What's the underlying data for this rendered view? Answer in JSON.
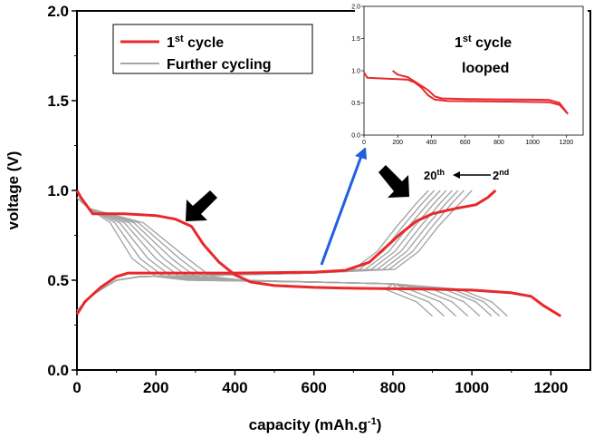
{
  "chart_data": {
    "type": "line",
    "xlabel": "capacity (mAh.g",
    "xlabel_sup": "-1",
    "xlabel_end": ")",
    "ylabel": "voltage (V)",
    "xlim": [
      0,
      1300
    ],
    "ylim": [
      0.0,
      2.0
    ],
    "x_ticks": [
      "0",
      "200",
      "400",
      "600",
      "800",
      "1000",
      "1200"
    ],
    "y_ticks": [
      "0.0",
      "0.5",
      "1.0",
      "1.5",
      "2.0"
    ],
    "grid": false,
    "legend_position": "top-left",
    "legend": [
      {
        "label": "1",
        "sup": "st",
        "label_end": " cycle",
        "color": "#e8282a"
      },
      {
        "label": "Further cycling",
        "sup": "",
        "label_end": "",
        "color": "#a6a6a6"
      }
    ],
    "series": [
      {
        "name": "1st cycle discharge",
        "color": "#e8282a",
        "points": [
          [
            0,
            1.0
          ],
          [
            10,
            0.96
          ],
          [
            40,
            0.87
          ],
          [
            120,
            0.87
          ],
          [
            200,
            0.86
          ],
          [
            250,
            0.84
          ],
          [
            290,
            0.8
          ],
          [
            320,
            0.7
          ],
          [
            360,
            0.6
          ],
          [
            400,
            0.53
          ],
          [
            440,
            0.49
          ],
          [
            500,
            0.47
          ],
          [
            600,
            0.46
          ],
          [
            700,
            0.455
          ],
          [
            900,
            0.45
          ],
          [
            1000,
            0.445
          ],
          [
            1100,
            0.43
          ],
          [
            1150,
            0.41
          ],
          [
            1180,
            0.36
          ],
          [
            1225,
            0.3
          ]
        ]
      },
      {
        "name": "1st cycle charge",
        "color": "#e8282a",
        "points": [
          [
            0,
            0.31
          ],
          [
            20,
            0.38
          ],
          [
            60,
            0.46
          ],
          [
            100,
            0.52
          ],
          [
            130,
            0.54
          ],
          [
            200,
            0.54
          ],
          [
            400,
            0.54
          ],
          [
            600,
            0.545
          ],
          [
            680,
            0.555
          ],
          [
            740,
            0.6
          ],
          [
            780,
            0.68
          ],
          [
            820,
            0.76
          ],
          [
            860,
            0.83
          ],
          [
            900,
            0.87
          ],
          [
            960,
            0.9
          ],
          [
            1010,
            0.92
          ],
          [
            1040,
            0.96
          ],
          [
            1060,
            1.0
          ]
        ]
      },
      {
        "name": "Further cycling discharge",
        "color": "#a6a6a6",
        "curves": [
          {
            "knee": 140,
            "end": 900
          },
          {
            "knee": 160,
            "end": 930
          },
          {
            "knee": 180,
            "end": 960
          },
          {
            "knee": 200,
            "end": 990
          },
          {
            "knee": 220,
            "end": 1020
          },
          {
            "knee": 240,
            "end": 1050
          },
          {
            "knee": 260,
            "end": 1070
          },
          {
            "knee": 280,
            "end": 1090
          }
        ]
      },
      {
        "name": "Further cycling charge",
        "color": "#a6a6a6",
        "curves": [
          {
            "rise": 700,
            "end": 890
          },
          {
            "rise": 715,
            "end": 905
          },
          {
            "rise": 730,
            "end": 920
          },
          {
            "rise": 745,
            "end": 935
          },
          {
            "rise": 760,
            "end": 950
          },
          {
            "rise": 775,
            "end": 965
          },
          {
            "rise": 790,
            "end": 980
          },
          {
            "rise": 805,
            "end": 1000
          }
        ]
      }
    ],
    "annotations": {
      "cycle_from": "20",
      "cycle_from_sup": "th",
      "cycle_to": "2",
      "cycle_to_sup": "nd"
    },
    "inset": {
      "title_line1": "1",
      "title_sup": "st",
      "title_line1_end": " cycle",
      "title_line2": "looped",
      "xlim": [
        0,
        1300
      ],
      "ylim": [
        0.0,
        2.0
      ],
      "x_ticks": [
        "0",
        "200",
        "400",
        "600",
        "800",
        "1000",
        "1200"
      ],
      "y_ticks": [
        "0.0",
        "0.5",
        "1.0",
        "1.5",
        "2.0"
      ],
      "series": [
        {
          "name": "looped charge",
          "color": "#e8282a",
          "points": [
            [
              0,
              0.97
            ],
            [
              20,
              0.89
            ],
            [
              100,
              0.88
            ],
            [
              200,
              0.87
            ],
            [
              260,
              0.86
            ],
            [
              300,
              0.82
            ],
            [
              340,
              0.74
            ],
            [
              380,
              0.62
            ],
            [
              420,
              0.55
            ],
            [
              500,
              0.53
            ],
            [
              700,
              0.525
            ],
            [
              900,
              0.52
            ],
            [
              1100,
              0.51
            ],
            [
              1160,
              0.47
            ],
            [
              1210,
              0.33
            ]
          ]
        },
        {
          "name": "looped discharge",
          "color": "#e8282a",
          "points": [
            [
              170,
              1.0
            ],
            [
              200,
              0.94
            ],
            [
              260,
              0.9
            ],
            [
              320,
              0.8
            ],
            [
              380,
              0.7
            ],
            [
              420,
              0.6
            ],
            [
              460,
              0.57
            ],
            [
              600,
              0.56
            ],
            [
              800,
              0.555
            ],
            [
              1000,
              0.55
            ],
            [
              1100,
              0.545
            ],
            [
              1160,
              0.5
            ],
            [
              1200,
              0.36
            ],
            [
              1210,
              0.33
            ]
          ]
        }
      ]
    }
  }
}
